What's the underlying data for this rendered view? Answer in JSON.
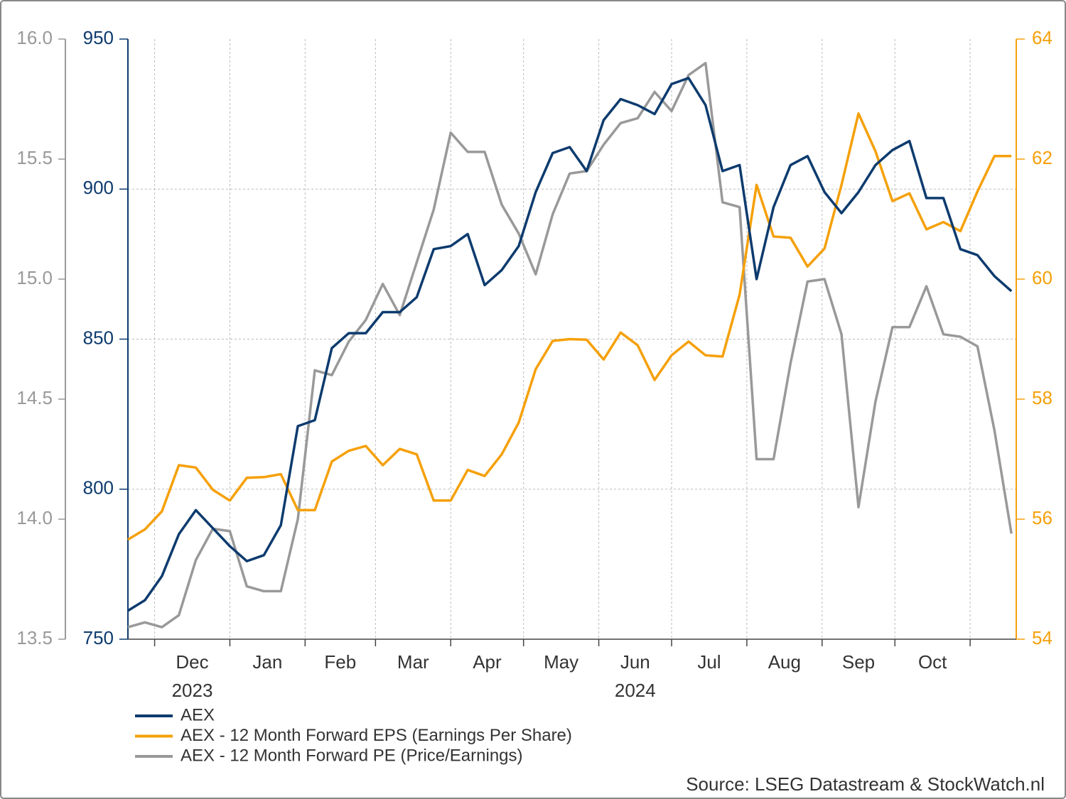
{
  "chart_data": {
    "type": "line",
    "x": [
      0,
      7,
      14,
      21,
      28,
      35,
      42,
      49,
      56,
      63,
      70,
      77,
      84,
      91,
      98,
      105,
      112,
      119,
      126,
      133,
      140,
      147,
      154,
      161,
      168,
      175,
      182,
      189,
      196,
      203,
      210,
      217,
      224,
      231,
      238,
      245,
      252,
      259,
      266,
      273,
      280,
      287,
      294,
      301,
      308,
      315,
      322,
      329,
      336,
      343,
      350,
      357,
      364
    ],
    "xlim": [
      0,
      366
    ],
    "xticks": [
      {
        "value": 11,
        "label": "Dec"
      },
      {
        "value": 42,
        "label": "Jan"
      },
      {
        "value": 73,
        "label": "Feb"
      },
      {
        "value": 102,
        "label": "Mar"
      },
      {
        "value": 133,
        "label": "Apr"
      },
      {
        "value": 163,
        "label": "May"
      },
      {
        "value": 194,
        "label": "Jun"
      },
      {
        "value": 224,
        "label": "Jul"
      },
      {
        "value": 255,
        "label": "Aug"
      },
      {
        "value": 286,
        "label": "Sep"
      },
      {
        "value": 316,
        "label": "Oct"
      },
      {
        "value": 347,
        "label": null
      }
    ],
    "year_labels": [
      {
        "value": 11,
        "label": "2023"
      },
      {
        "value": 194,
        "label": "2024"
      }
    ],
    "ylim": [
      750,
      950
    ],
    "yticks": [
      750,
      800,
      850,
      900,
      950
    ],
    "y_color": "#0d3b6e",
    "y2lim": [
      54,
      64
    ],
    "y2ticks": [
      54,
      56,
      58,
      60,
      62,
      64
    ],
    "y2_color": "#f5a00a",
    "y3lim": [
      13.5,
      16.0
    ],
    "y3ticks": [
      13.5,
      {
        "value": 14.0,
        "label": "14.0"
      },
      14.5,
      {
        "value": 15.0,
        "label": "15.0"
      },
      15.5,
      {
        "value": 16.0,
        "label": "16.0"
      }
    ],
    "y3_color": "#999999",
    "grid": true,
    "series": [
      {
        "name": "AEX",
        "color": "#0d3b6e",
        "axis": "y",
        "values": [
          759.5,
          763,
          771,
          785,
          793,
          787,
          781,
          776,
          778,
          788,
          821,
          823,
          847,
          852,
          852,
          859,
          859,
          864,
          880,
          881,
          885,
          868,
          873,
          881,
          899,
          912,
          914,
          906,
          923,
          930,
          928,
          925,
          935,
          937,
          928,
          906,
          908,
          870,
          894,
          908,
          911,
          899,
          892,
          899,
          908,
          913,
          916,
          897,
          897,
          880,
          878,
          871,
          866
        ]
      },
      {
        "name": "AEX - 12 Month Forward EPS (Earnings Per Share)",
        "color": "#f5a00a",
        "axis": "y2",
        "values": [
          55.66,
          55.83,
          56.13,
          56.9,
          56.86,
          56.49,
          56.31,
          56.69,
          56.7,
          56.75,
          56.15,
          56.15,
          56.96,
          57.14,
          57.22,
          56.9,
          57.17,
          57.08,
          56.31,
          56.31,
          56.82,
          56.72,
          57.08,
          57.61,
          58.5,
          58.97,
          59.0,
          58.99,
          58.66,
          59.11,
          58.9,
          58.32,
          58.73,
          58.96,
          58.73,
          58.71,
          59.74,
          61.57,
          60.71,
          60.69,
          60.21,
          60.51,
          61.57,
          62.76,
          62.13,
          61.3,
          61.43,
          60.83,
          60.95,
          60.8,
          61.46,
          62.05,
          62.05
        ]
      },
      {
        "name": "AEX - 12 Month Forward PE (Price/Earnings)",
        "color": "#999999",
        "axis": "y3",
        "values": [
          13.55,
          13.57,
          13.55,
          13.6,
          13.83,
          13.96,
          13.95,
          13.72,
          13.7,
          13.7,
          14.0,
          14.62,
          14.6,
          14.74,
          14.83,
          14.98,
          14.85,
          15.07,
          15.29,
          15.61,
          15.53,
          15.53,
          15.31,
          15.19,
          15.02,
          15.27,
          15.44,
          15.45,
          15.56,
          15.65,
          15.67,
          15.78,
          15.7,
          15.85,
          15.9,
          15.32,
          15.3,
          14.25,
          14.25,
          14.65,
          14.99,
          15.0,
          14.77,
          14.05,
          14.49,
          14.8,
          14.8,
          14.97,
          14.77,
          14.76,
          14.72,
          14.37,
          13.94
        ]
      }
    ],
    "source": "Source: LSEG Datastream & StockWatch.nl"
  }
}
